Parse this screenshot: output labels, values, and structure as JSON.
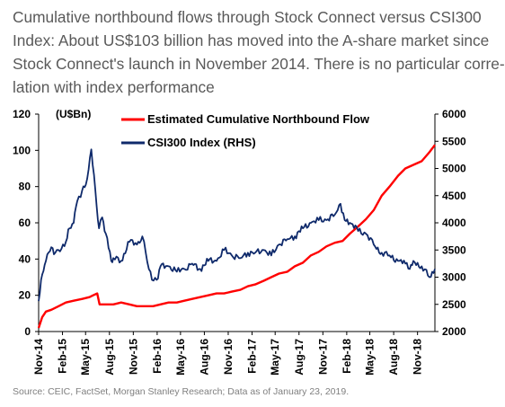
{
  "caption": {
    "lines": [
      "Cumulative northbound flows through Stock Connect versus CSI300",
      "Index: About US$103 billion has moved into the A-share market since",
      "Stock Connect's launch in November 2014. There is no particular corre-",
      "lation with index performance"
    ]
  },
  "source": "Source: CEIC, FactSet, Morgan Stanley Research; Data as of January 23, 2019.",
  "colors": {
    "flow": "#ff0000",
    "index": "#0f2a6b"
  },
  "chart_data": {
    "type": "line",
    "unit_label": "(U$Bn)",
    "x_tick_labels": [
      "Nov-14",
      "Feb-15",
      "May-15",
      "Aug-15",
      "Nov-15",
      "Feb-16",
      "May-16",
      "Aug-16",
      "Nov-16",
      "Feb-17",
      "May-17",
      "Aug-17",
      "Nov-17",
      "Feb-18",
      "May-18",
      "Aug-18",
      "Nov-18"
    ],
    "ylim_left": [
      0,
      120
    ],
    "y_ticks_left": [
      0,
      20,
      40,
      60,
      80,
      100,
      120
    ],
    "ylim_right": [
      2000,
      6000
    ],
    "y_ticks_right": [
      2000,
      2500,
      3000,
      3500,
      4000,
      4500,
      5000,
      5500,
      6000
    ],
    "legend_position": "top-center",
    "grid": false,
    "series": [
      {
        "name": "Estimated Cumulative Northbound Flow",
        "axis": "left",
        "x": [
          "2014-11-17",
          "2014-12-01",
          "2014-12-15",
          "2015-01-05",
          "2015-02-02",
          "2015-03-02",
          "2015-04-01",
          "2015-05-04",
          "2015-06-01",
          "2015-06-15",
          "2015-07-01",
          "2015-07-10",
          "2015-08-03",
          "2015-09-01",
          "2015-10-01",
          "2015-11-02",
          "2015-12-01",
          "2016-01-04",
          "2016-02-01",
          "2016-03-01",
          "2016-04-01",
          "2016-05-03",
          "2016-06-01",
          "2016-07-01",
          "2016-08-01",
          "2016-09-01",
          "2016-10-03",
          "2016-11-01",
          "2016-12-01",
          "2017-01-03",
          "2017-02-01",
          "2017-03-01",
          "2017-04-03",
          "2017-05-02",
          "2017-06-01",
          "2017-07-03",
          "2017-08-01",
          "2017-09-01",
          "2017-10-02",
          "2017-11-01",
          "2017-12-01",
          "2018-01-02",
          "2018-02-01",
          "2018-03-01",
          "2018-04-02",
          "2018-05-02",
          "2018-06-01",
          "2018-07-02",
          "2018-08-01",
          "2018-09-03",
          "2018-10-01",
          "2018-11-01",
          "2018-12-03",
          "2019-01-02",
          "2019-01-23"
        ],
        "values": [
          2,
          8,
          11,
          12,
          14,
          16,
          17,
          18,
          19,
          20,
          21,
          15,
          15,
          15,
          16,
          15,
          14,
          14,
          14,
          15,
          16,
          16,
          17,
          18,
          19,
          20,
          21,
          21,
          22,
          23,
          25,
          26,
          28,
          30,
          32,
          33,
          36,
          38,
          42,
          44,
          47,
          49,
          50,
          54,
          58,
          62,
          67,
          75,
          80,
          86,
          90,
          92,
          94,
          99,
          103
        ]
      },
      {
        "name": "CSI300 Index (RHS)",
        "axis": "right",
        "x": [
          "2014-11-17",
          "2014-12-01",
          "2014-12-15",
          "2015-01-05",
          "2015-01-20",
          "2015-02-02",
          "2015-03-02",
          "2015-03-16",
          "2015-04-01",
          "2015-04-15",
          "2015-05-04",
          "2015-05-18",
          "2015-06-08",
          "2015-06-29",
          "2015-07-08",
          "2015-07-20",
          "2015-08-03",
          "2015-08-24",
          "2015-09-01",
          "2015-10-01",
          "2015-11-02",
          "2015-12-01",
          "2015-12-22",
          "2016-01-04",
          "2016-01-28",
          "2016-02-15",
          "2016-03-01",
          "2016-04-01",
          "2016-05-03",
          "2016-06-01",
          "2016-07-01",
          "2016-08-01",
          "2016-09-01",
          "2016-10-03",
          "2016-11-01",
          "2016-12-01",
          "2017-01-03",
          "2017-02-01",
          "2017-03-01",
          "2017-04-03",
          "2017-05-02",
          "2017-06-01",
          "2017-07-03",
          "2017-08-01",
          "2017-09-01",
          "2017-10-02",
          "2017-11-01",
          "2017-12-01",
          "2018-01-02",
          "2018-01-24",
          "2018-02-09",
          "2018-03-01",
          "2018-04-02",
          "2018-05-02",
          "2018-06-01",
          "2018-07-02",
          "2018-08-01",
          "2018-09-03",
          "2018-10-01",
          "2018-10-18",
          "2018-11-01",
          "2018-12-03",
          "2019-01-02",
          "2019-01-23"
        ],
        "values": [
          2560,
          3050,
          3300,
          3550,
          3450,
          3500,
          3650,
          3900,
          4000,
          4400,
          4600,
          4700,
          5350,
          4300,
          3900,
          4100,
          3800,
          3300,
          3350,
          3300,
          3650,
          3600,
          3750,
          3450,
          2950,
          2950,
          3200,
          3200,
          3100,
          3150,
          3250,
          3150,
          3300,
          3300,
          3500,
          3400,
          3350,
          3450,
          3450,
          3500,
          3400,
          3600,
          3700,
          3750,
          3900,
          4000,
          4050,
          4050,
          4150,
          4350,
          4050,
          4000,
          3850,
          3800,
          3600,
          3450,
          3400,
          3300,
          3250,
          3150,
          3300,
          3200,
          3000,
          3150
        ]
      }
    ]
  }
}
